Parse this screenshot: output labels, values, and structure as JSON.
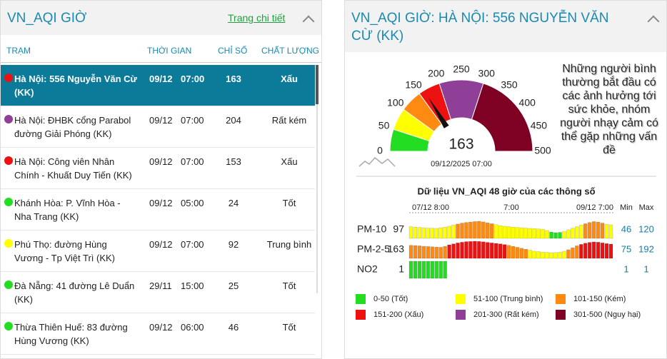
{
  "left_panel": {
    "title": "VN_AQI GIỜ",
    "link": "Trang chi tiết",
    "columns": [
      "TRẠM",
      "THỜI GIAN",
      "CHỈ SỐ",
      "CHẤT LƯỢNG"
    ],
    "selected_row": 0,
    "rows": [
      {
        "station": "Hà Nội: 556 Nguyễn Văn Cừ (KK)",
        "date": "09/12",
        "time": "07:00",
        "index": 163,
        "quality": "Xấu",
        "color": "#ee1111"
      },
      {
        "station": "Hà Nội: ĐHBK cổng Parabol đường Giải Phóng (KK)",
        "date": "09/12",
        "time": "07:00",
        "index": 204,
        "quality": "Rất kém",
        "color": "#8f3f97"
      },
      {
        "station": "Hà Nội: Công viên Nhân Chính - Khuất Duy Tiến (KK)",
        "date": "09/12",
        "time": "07:00",
        "index": 153,
        "quality": "Xấu",
        "color": "#ee1111"
      },
      {
        "station": "Khánh Hòa: P. Vĩnh Hòa - Nha Trang (KK)",
        "date": "09/12",
        "time": "05:00",
        "index": 24,
        "quality": "Tốt",
        "color": "#22dd22"
      },
      {
        "station": "Phú Thọ: đường Hùng Vương - Tp Việt Trì (KK)",
        "date": "09/12",
        "time": "07:00",
        "index": 92,
        "quality": "Trung bình",
        "color": "#ffff00"
      },
      {
        "station": "Đà Nẵng: 41 đường Lê Duẩn (KK)",
        "date": "29/11",
        "time": "15:00",
        "index": 25,
        "quality": "Tốt",
        "color": "#22dd22"
      },
      {
        "station": "Thừa Thiên Huế: 83 đường Hùng Vương (KK)",
        "date": "09/12",
        "time": "06:00",
        "index": 46,
        "quality": "Tốt",
        "color": "#22dd22"
      }
    ]
  },
  "right_panel": {
    "title": "VN_AQI GIỜ: HÀ NỘI: 556 NGUYỄN VĂN CỪ (KK)",
    "gauge": {
      "value": 163,
      "range": [
        0,
        500
      ],
      "ticks": [
        0,
        50,
        100,
        150,
        200,
        250,
        300,
        350,
        400,
        450,
        500
      ],
      "bands": [
        {
          "from": 0,
          "to": 50,
          "color": "#22dd22"
        },
        {
          "from": 50,
          "to": 100,
          "color": "#ffff00"
        },
        {
          "from": 100,
          "to": 150,
          "color": "#ff8a12"
        },
        {
          "from": 150,
          "to": 200,
          "color": "#ee1111"
        },
        {
          "from": 200,
          "to": 300,
          "color": "#8f3f97"
        },
        {
          "from": 300,
          "to": 500,
          "color": "#7e0023"
        }
      ],
      "datetime": "09/12/2025 07:00",
      "description": "Những người bình thường bắt đầu có các ảnh hưởng tới sức khỏe, nhóm người nhạy cảm có thể gặp những vấn đề"
    },
    "history": {
      "title": "Dữ liệu VN_AQI 48 giờ của các thông số",
      "axis_labels": [
        "07/12 8:00",
        "7:00",
        "09/12 7:00"
      ],
      "min_label": "Min",
      "max_label": "Max",
      "series": [
        {
          "name": "PM-10",
          "current": 97,
          "min": 46,
          "max": 120,
          "values": [
            85,
            82,
            80,
            78,
            76,
            75,
            74,
            78,
            82,
            88,
            95,
            102,
            108,
            112,
            115,
            118,
            120,
            116,
            110,
            104,
            98,
            92,
            88,
            85,
            82,
            80,
            78,
            76,
            74,
            72,
            70,
            68,
            60,
            50,
            46,
            48,
            55,
            65,
            75,
            85,
            95,
            104,
            112,
            118,
            115,
            108,
            100,
            97
          ]
        },
        {
          "name": "PM-2-5",
          "current": 163,
          "min": 75,
          "max": 192,
          "values": [
            150,
            148,
            145,
            140,
            138,
            135,
            132,
            130,
            140,
            155,
            165,
            175,
            182,
            188,
            190,
            192,
            190,
            186,
            180,
            175,
            170,
            165,
            158,
            150,
            140,
            130,
            120,
            110,
            100,
            90,
            85,
            80,
            78,
            75,
            76,
            80,
            90,
            105,
            125,
            145,
            160,
            172,
            180,
            185,
            182,
            175,
            168,
            163
          ]
        },
        {
          "name": "NO2",
          "current": 1,
          "min": 1,
          "max": 1,
          "values": [
            1,
            1,
            1,
            1,
            1,
            1,
            1,
            1,
            1
          ]
        }
      ]
    },
    "legend": [
      {
        "label": "0-50 (Tốt)",
        "color": "#22dd22"
      },
      {
        "label": "51-100 (Trung bình)",
        "color": "#ffff00"
      },
      {
        "label": "101-150 (Kém)",
        "color": "#ff8a12"
      },
      {
        "label": "151-200 (Xấu)",
        "color": "#ee1111"
      },
      {
        "label": "201-300 (Rất kém)",
        "color": "#8f3f97"
      },
      {
        "label": "301-500 (Nguy hại)",
        "color": "#7e0023"
      }
    ]
  }
}
